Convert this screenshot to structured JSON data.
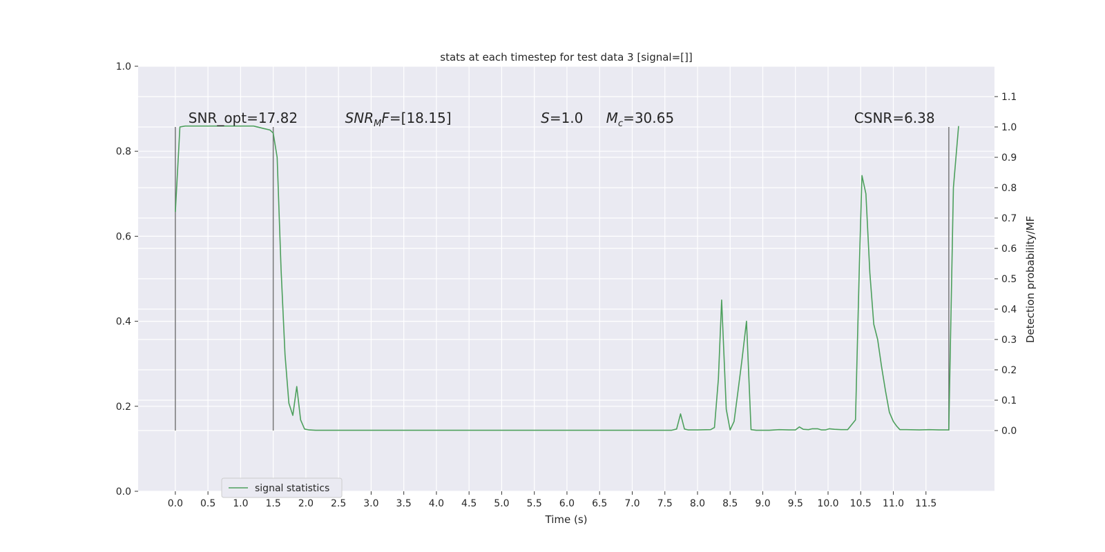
{
  "chart_data": {
    "type": "line",
    "title": "stats at each timestep for test data 3 [signal=[]]",
    "xlabel": "Time (s)",
    "ylabel_left": "",
    "ylabel_right": "Detection probability/MF",
    "xlim": [
      -0.57,
      12.55
    ],
    "ylim_left": [
      0.0,
      1.0
    ],
    "ylim_right": [
      -0.2,
      1.2
    ],
    "x_ticks": [
      "0.0",
      "0.5",
      "1.0",
      "1.5",
      "2.0",
      "2.5",
      "3.0",
      "3.5",
      "4.0",
      "4.5",
      "5.0",
      "5.5",
      "6.0",
      "6.5",
      "7.0",
      "7.5",
      "8.0",
      "8.5",
      "9.0",
      "9.5",
      "10.0",
      "10.5",
      "11.0",
      "11.5"
    ],
    "y_ticks_left": [
      "0.0",
      "0.2",
      "0.4",
      "0.6",
      "0.8",
      "1.0"
    ],
    "y_ticks_right": [
      "0.0",
      "0.1",
      "0.2",
      "0.3",
      "0.4",
      "0.5",
      "0.6",
      "0.7",
      "0.8",
      "0.9",
      "1.0",
      "1.1"
    ],
    "grid": true,
    "legend_position": "lower-left",
    "annotations": [
      {
        "text": "SNR_opt=17.82",
        "x": 0.2
      },
      {
        "text": "SNR_MF=[18.15]",
        "x": 2.6
      },
      {
        "text": "S=1.0",
        "x": 5.6
      },
      {
        "text": "M_c=30.65",
        "x": 6.6
      },
      {
        "text": "CSNR=6.38",
        "x": 10.4
      }
    ],
    "vlines": [
      0.0,
      1.5,
      11.85
    ],
    "vline_range": [
      0.0,
      1.0
    ],
    "series": [
      {
        "name": "signal statistics",
        "color": "#4c9f5c",
        "axis": "right",
        "x": [
          0.0,
          0.07,
          0.15,
          0.3,
          0.5,
          0.8,
          1.0,
          1.2,
          1.35,
          1.45,
          1.5,
          1.56,
          1.62,
          1.68,
          1.74,
          1.8,
          1.86,
          1.92,
          1.98,
          2.05,
          2.15,
          2.3,
          2.5,
          2.8,
          3.0,
          5.0,
          7.0,
          7.6,
          7.68,
          7.74,
          7.8,
          7.86,
          8.0,
          8.2,
          8.26,
          8.32,
          8.37,
          8.44,
          8.5,
          8.56,
          8.62,
          8.68,
          8.75,
          8.82,
          8.9,
          9.1,
          9.25,
          9.4,
          9.5,
          9.56,
          9.62,
          9.7,
          9.76,
          9.84,
          9.9,
          9.96,
          10.02,
          10.1,
          10.2,
          10.3,
          10.42,
          10.48,
          10.52,
          10.58,
          10.64,
          10.7,
          10.76,
          10.82,
          10.88,
          10.94,
          11.0,
          11.05,
          11.1,
          11.2,
          11.4,
          11.55,
          11.7,
          11.8,
          11.85,
          11.92,
          12.0
        ],
        "values": [
          0.72,
          1.0,
          1.003,
          1.003,
          1.003,
          1.003,
          1.003,
          1.003,
          0.995,
          0.99,
          0.98,
          0.9,
          0.53,
          0.25,
          0.09,
          0.05,
          0.145,
          0.035,
          0.005,
          0.002,
          0.001,
          0.001,
          0.001,
          0.001,
          0.001,
          0.001,
          0.001,
          0.001,
          0.005,
          0.055,
          0.005,
          0.002,
          0.002,
          0.003,
          0.01,
          0.17,
          0.43,
          0.07,
          0.002,
          0.03,
          0.13,
          0.23,
          0.36,
          0.003,
          0.001,
          0.001,
          0.003,
          0.002,
          0.002,
          0.012,
          0.004,
          0.003,
          0.006,
          0.006,
          0.002,
          0.002,
          0.006,
          0.004,
          0.003,
          0.003,
          0.035,
          0.55,
          0.84,
          0.78,
          0.52,
          0.35,
          0.3,
          0.21,
          0.13,
          0.06,
          0.03,
          0.015,
          0.003,
          0.003,
          0.002,
          0.003,
          0.002,
          0.002,
          0.002,
          0.8,
          1.003
        ]
      }
    ]
  }
}
